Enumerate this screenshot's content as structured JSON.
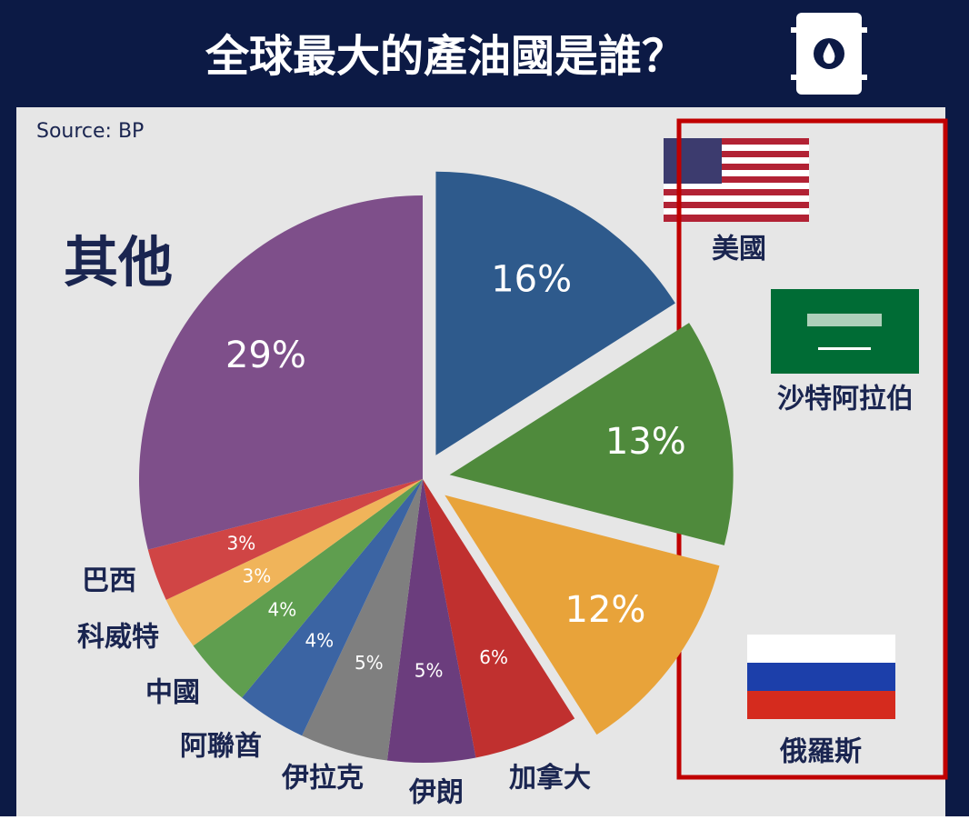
{
  "chart_data": {
    "type": "pie",
    "title": "全球最大的產油國是誰？",
    "source": "Source: BP",
    "categories": [
      "美國",
      "沙特阿拉伯",
      "俄羅斯",
      "加拿大",
      "伊朗",
      "伊拉克",
      "阿聯酋",
      "中國",
      "科威特",
      "巴西",
      "其他"
    ],
    "values": [
      16,
      13,
      12,
      6,
      5,
      5,
      4,
      4,
      3,
      3,
      29
    ],
    "value_labels": [
      "16%",
      "13%",
      "12%",
      "6%",
      "5%",
      "5%",
      "4%",
      "4%",
      "3%",
      "3%",
      "29%"
    ],
    "colors": [
      "#2e5a8c",
      "#4f8a3c",
      "#e8a33a",
      "#c0302f",
      "#6b3d7d",
      "#7f7f7f",
      "#3b64a3",
      "#5f9e4f",
      "#f0b45a",
      "#d04545",
      "#7e4f8a"
    ]
  }
}
